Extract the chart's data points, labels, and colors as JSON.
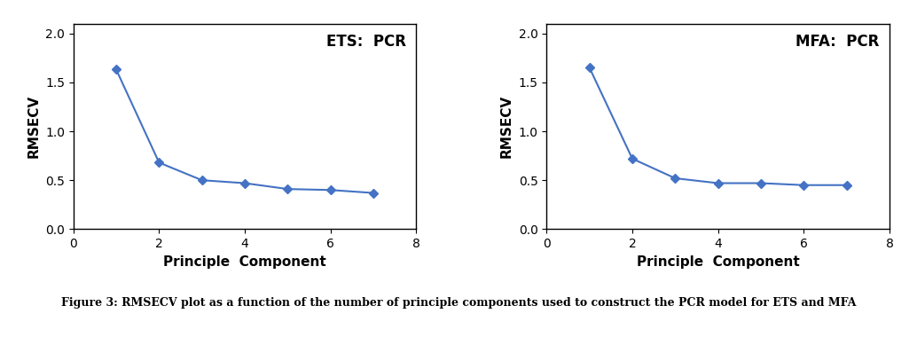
{
  "ets_x": [
    1,
    2,
    3,
    4,
    5,
    6,
    7
  ],
  "ets_y": [
    1.63,
    0.68,
    0.5,
    0.47,
    0.41,
    0.4,
    0.37
  ],
  "mfa_x": [
    1,
    2,
    3,
    4,
    5,
    6,
    7
  ],
  "mfa_y": [
    1.65,
    0.72,
    0.52,
    0.47,
    0.47,
    0.45,
    0.45
  ],
  "ets_title": "ETS:  PCR",
  "mfa_title": "MFA:  PCR",
  "xlabel": "Principle  Component",
  "ylabel": "RMSECV",
  "xlim": [
    0,
    8
  ],
  "ylim": [
    0,
    2.1
  ],
  "xticks": [
    0,
    2,
    4,
    6,
    8
  ],
  "yticks": [
    0,
    0.5,
    1,
    1.5,
    2
  ],
  "line_color": "#4472C4",
  "marker": "D",
  "markersize": 5,
  "linewidth": 1.5,
  "caption": "Figure 3: RMSECV plot as a function of the number of principle components used to construct the PCR model for ETS and MFA",
  "caption_fontsize": 9,
  "title_fontsize": 12,
  "label_fontsize": 11,
  "tick_fontsize": 10,
  "background_color": "#ffffff"
}
